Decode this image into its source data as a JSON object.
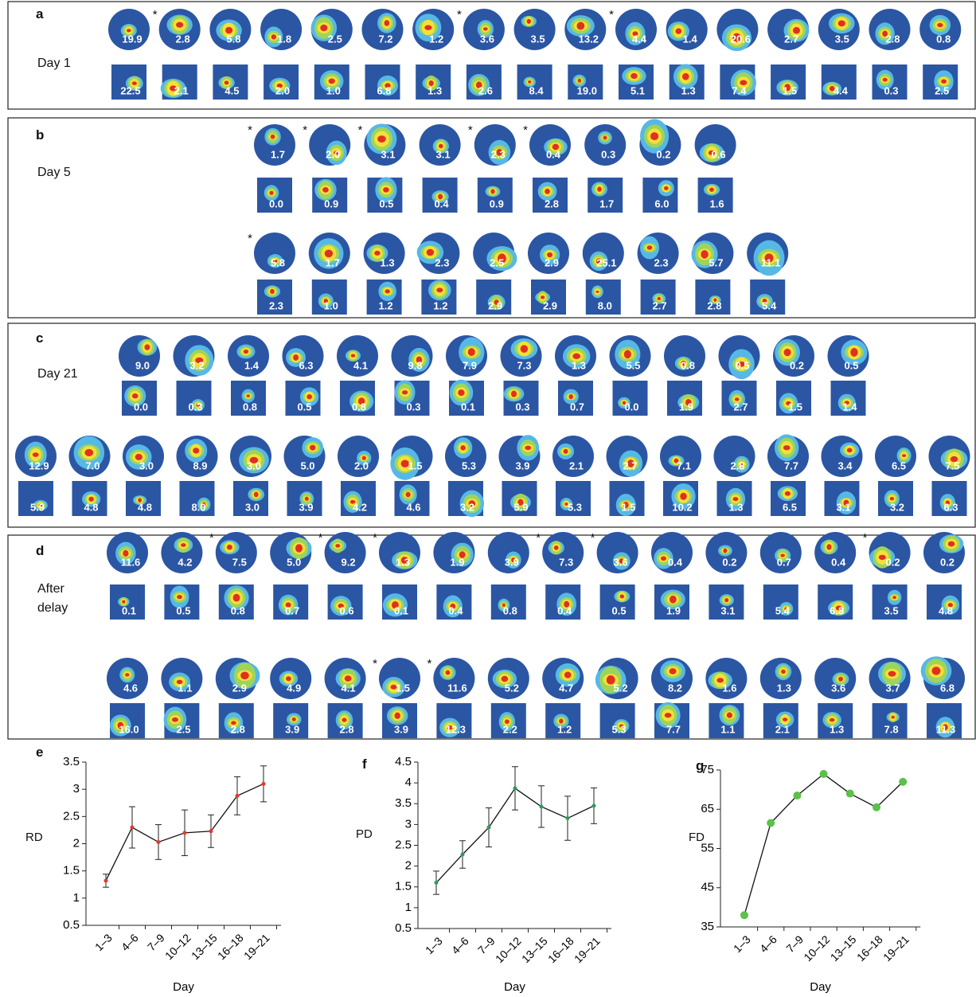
{
  "panels": [
    {
      "label": "a",
      "caption": "Day 1",
      "blocks": [
        {
          "cells": [
            {
              "circle": "19.9",
              "square": "22.5"
            },
            {
              "star": "*",
              "circle": "2.8",
              "square": "2.1"
            },
            {
              "circle": "5.8",
              "square": "4.5"
            },
            {
              "circle": "1.8",
              "square": "2.0"
            },
            {
              "circle": "2.5",
              "square": "1.0"
            },
            {
              "circle": "7.2",
              "square": "6.8"
            },
            {
              "circle": "1.2",
              "square": "1.3"
            },
            {
              "star": "*",
              "circle": "3.6",
              "square": "2.6"
            },
            {
              "circle": "3.5",
              "square": "8.4"
            },
            {
              "circle": "13.2",
              "square": "19.0"
            },
            {
              "star": "*",
              "circle": "4.4",
              "square": "5.1"
            },
            {
              "circle": "1.4",
              "square": "1.3"
            },
            {
              "circle": "20.6",
              "square": "7.4"
            },
            {
              "circle": "2.7",
              "square": "1.5"
            },
            {
              "circle": "3.5",
              "square": "4.4"
            },
            {
              "circle": "2.8",
              "square": "0.3"
            },
            {
              "circle": "0.8",
              "square": "2.5"
            }
          ]
        }
      ]
    },
    {
      "label": "b",
      "caption": "Day 5",
      "blocks": [
        {
          "cells": [
            {
              "star": "*",
              "circle": "1.7",
              "square": "0.0"
            },
            {
              "star": "*",
              "circle": "2.0",
              "square": "0.9"
            },
            {
              "star": "*",
              "circle": "3.1",
              "square": "0.5"
            },
            {
              "circle": "3.1",
              "square": "0.4"
            },
            {
              "star": "*",
              "circle": "2.3",
              "square": "0.9"
            },
            {
              "star": "*",
              "circle": "0.4",
              "square": "2.8"
            },
            {
              "circle": "0.3",
              "square": "1.7"
            },
            {
              "circle": "0.2",
              "square": "6.0"
            },
            {
              "circle": "0.6",
              "square": "1.6"
            }
          ]
        },
        {
          "cells": [
            {
              "star": "*",
              "circle": "5.8",
              "square": "2.3"
            },
            {
              "circle": "1.7",
              "square": "1.0"
            },
            {
              "circle": "1.3",
              "square": "1.2"
            },
            {
              "circle": "2.3",
              "square": "1.2"
            },
            {
              "circle": "2.5",
              "square": "2.9"
            },
            {
              "circle": "2.9",
              "square": "2.9"
            },
            {
              "circle": "25.1",
              "square": "8.0"
            },
            {
              "circle": "2.3",
              "square": "2.7"
            },
            {
              "circle": "5.7",
              "square": "2.8"
            },
            {
              "circle": "11.1",
              "square": "5.4"
            }
          ]
        }
      ]
    },
    {
      "label": "c",
      "caption": "Day 21",
      "blocks": [
        {
          "cells": [
            {
              "circle": "9.0",
              "square": "0.0"
            },
            {
              "circle": "3.2",
              "square": "0.3"
            },
            {
              "circle": "1.4",
              "square": "0.8"
            },
            {
              "circle": "6.3",
              "square": "0.5"
            },
            {
              "circle": "4.1",
              "square": "0.8"
            },
            {
              "circle": "9.8",
              "square": "0.3"
            },
            {
              "circle": "7.9",
              "square": "0.1"
            },
            {
              "circle": "7.3",
              "square": "0.3"
            },
            {
              "circle": "1.3",
              "square": "0.7"
            },
            {
              "circle": "5.5",
              "square": "0.0"
            },
            {
              "circle": "0.8",
              "square": "1.9"
            },
            {
              "circle": "0.5",
              "square": "2.7"
            },
            {
              "circle": "0.2",
              "square": "1.5"
            },
            {
              "circle": "0.5",
              "square": "1.4"
            }
          ]
        },
        {
          "cells": [
            {
              "circle": "12.9",
              "square": "5.9"
            },
            {
              "circle": "7.0",
              "square": "4.8"
            },
            {
              "circle": "3.0",
              "square": "4.8"
            },
            {
              "circle": "8.9",
              "square": "8.0"
            },
            {
              "circle": "3.0",
              "square": "3.0"
            },
            {
              "circle": "5.0",
              "square": "3.9"
            },
            {
              "circle": "2.0",
              "square": "4.2"
            },
            {
              "circle": "1.5",
              "square": "4.6"
            },
            {
              "circle": "5.3",
              "square": "3.2"
            },
            {
              "circle": "3.9",
              "square": "5.9"
            },
            {
              "circle": "2.1",
              "square": "5.3"
            },
            {
              "circle": "2.7",
              "square": "1.5"
            },
            {
              "circle": "7.1",
              "square": "10.2"
            },
            {
              "circle": "2.8",
              "square": "1.3"
            },
            {
              "circle": "7.7",
              "square": "6.5"
            },
            {
              "circle": "3.4",
              "square": "3.1"
            },
            {
              "circle": "6.5",
              "square": "3.2"
            },
            {
              "circle": "7.5",
              "square": "6.3"
            }
          ]
        }
      ]
    },
    {
      "label": "d",
      "caption": "After delay",
      "blocks": [
        {
          "cells": [
            {
              "circle": "11.6",
              "square": "0.1"
            },
            {
              "circle": "4.2",
              "square": "0.5"
            },
            {
              "star": "*",
              "circle": "7.5",
              "square": "0.8"
            },
            {
              "circle": "5.0",
              "square": "0.7"
            },
            {
              "star": "*",
              "circle": "9.2",
              "square": "0.6"
            },
            {
              "star": "*",
              "circle": "1.3",
              "square": "0.1"
            },
            {
              "circle": "1.9",
              "square": "0.4"
            },
            {
              "circle": "3.9",
              "square": "0.8"
            },
            {
              "star": "*",
              "circle": "7.3",
              "square": "0.4"
            },
            {
              "star": "*",
              "circle": "3.6",
              "square": "0.5"
            },
            {
              "circle": "0.4",
              "square": "1.9"
            },
            {
              "circle": "0.2",
              "square": "3.1"
            },
            {
              "circle": "0.7",
              "square": "5.4"
            },
            {
              "circle": "0.4",
              "square": "6.8"
            },
            {
              "star": "*",
              "circle": "0.2",
              "square": "3.5"
            },
            {
              "circle": "0.2",
              "square": "4.8"
            }
          ]
        },
        {
          "cells": [
            {
              "circle": "4.6",
              "square": "16.0"
            },
            {
              "circle": "1.1",
              "square": "2.5"
            },
            {
              "circle": "2.9",
              "square": "2.8"
            },
            {
              "circle": "4.9",
              "square": "3.9"
            },
            {
              "circle": "4.1",
              "square": "2.8"
            },
            {
              "star": "*",
              "circle": "1.5",
              "square": "3.9"
            },
            {
              "star": "*",
              "circle": "11.6",
              "square": "12.3"
            },
            {
              "circle": "5.2",
              "square": "2.2"
            },
            {
              "circle": "4.7",
              "square": "1.2"
            },
            {
              "circle": "5.2",
              "square": "5.3"
            },
            {
              "circle": "8.2",
              "square": "7.7"
            },
            {
              "circle": "1.6",
              "square": "1.1"
            },
            {
              "circle": "1.3",
              "square": "2.1"
            },
            {
              "circle": "3.6",
              "square": "1.3"
            },
            {
              "circle": "3.7",
              "square": "7.8"
            },
            {
              "circle": "6.8",
              "square": "11.3"
            }
          ]
        }
      ]
    }
  ],
  "chart_data": [
    {
      "type": "line",
      "panel_label": "e",
      "ylabel": "RD",
      "xlabel": "Day",
      "categories": [
        "1–3",
        "4–6",
        "7–9",
        "10–12",
        "13–15",
        "16–18",
        "19–21"
      ],
      "values": [
        1.32,
        2.3,
        2.03,
        2.2,
        2.23,
        2.88,
        3.1
      ],
      "errors": [
        0.12,
        0.38,
        0.32,
        0.42,
        0.3,
        0.35,
        0.33
      ],
      "color": "#e8352a",
      "ylim": [
        0.5,
        3.5
      ],
      "yticks": [
        0.5,
        1,
        1.5,
        2,
        2.5,
        3,
        3.5
      ]
    },
    {
      "type": "line",
      "panel_label": "f",
      "ylabel": "PD",
      "xlabel": "Day",
      "categories": [
        "1–3",
        "4–6",
        "7–9",
        "10–12",
        "13–15",
        "16–18",
        "19–21"
      ],
      "values": [
        1.6,
        2.28,
        2.93,
        3.87,
        3.43,
        3.15,
        3.45
      ],
      "errors": [
        0.28,
        0.33,
        0.47,
        0.52,
        0.5,
        0.53,
        0.43
      ],
      "color": "#2a9d5c",
      "ylim": [
        0.5,
        4.5
      ],
      "yticks": [
        0.5,
        1,
        1.5,
        2,
        2.5,
        3,
        3.5,
        4,
        4.5
      ]
    },
    {
      "type": "line",
      "panel_label": "g",
      "ylabel": "FD",
      "xlabel": "Day",
      "categories": [
        "1–3",
        "4–6",
        "7–9",
        "10–12",
        "13–15",
        "16–18",
        "19–21"
      ],
      "values": [
        38,
        61.5,
        68.5,
        74,
        69,
        65.5,
        72
      ],
      "color": "#5cc04a",
      "ylim": [
        35,
        75
      ],
      "yticks": [
        35,
        45,
        55,
        65,
        75
      ]
    }
  ]
}
